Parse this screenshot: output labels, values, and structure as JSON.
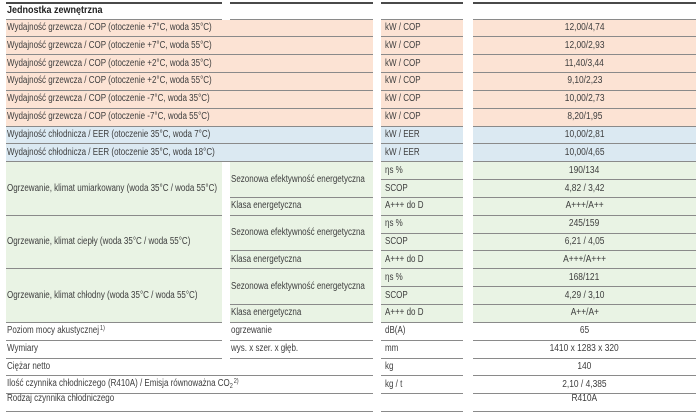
{
  "table": {
    "section_header": "Jednostka zewnętrzna",
    "colors": {
      "heating_row_bg": "#fce3d4",
      "cooling_row_bg": "#dbe9f2",
      "seasonal_row_bg": "#e9f3e4",
      "grid_line": "#8a8a8a",
      "top_line": "#4a4a4a",
      "text": "#3e3e3e"
    },
    "capacity_rows": [
      {
        "label": "Wydajność grzewcza / COP (otoczenie +7°C, woda 35°C)",
        "unit": "kW / COP",
        "value": "12,00/4,74",
        "type": "heating"
      },
      {
        "label": "Wydajność grzewcza / COP (otoczenie +7°C, woda 55°C)",
        "unit": "kW / COP",
        "value": "12,00/2,93",
        "type": "heating"
      },
      {
        "label": "Wydajność grzewcza / COP (otoczenie +2°C, woda 35°C)",
        "unit": "kW / COP",
        "value": "11,40/3,44",
        "type": "heating"
      },
      {
        "label": "Wydajność grzewcza / COP (otoczenie +2°C, woda 55°C)",
        "unit": "kW / COP",
        "value": "9,10/2,23",
        "type": "heating"
      },
      {
        "label": "Wydajność grzewcza / COP (otoczenie -7°C, woda 35°C)",
        "unit": "kW / COP",
        "value": "10,00/2,73",
        "type": "heating"
      },
      {
        "label": "Wydajność grzewcza / COP (otoczenie -7°C, woda 55°C)",
        "unit": "kW / COP",
        "value": "8,20/1,95",
        "type": "heating"
      },
      {
        "label": "Wydajność chłodnicza / EER (otoczenie 35°C, woda 7°C)",
        "unit": "kW / EER",
        "value": "10,00/2,81",
        "type": "cooling"
      },
      {
        "label": "Wydajność chłodnicza / EER (otoczenie 35°C, woda 18°C)",
        "unit": "kW / EER",
        "value": "10,00/4,65",
        "type": "cooling"
      }
    ],
    "seasonal_groups": [
      {
        "label": "Ogrzewanie, klimat umiarkowany (woda 35°C / woda 55°C)",
        "efficiency_label": "Sezonowa efektywność energetyczna",
        "class_label": "Klasa energetyczna",
        "eta_unit": "ηs %",
        "eta_value": "190/134",
        "scop_unit": "SCOP",
        "scop_value": "4,82 / 3,42",
        "class_unit": "A+++ do D",
        "class_value": "A+++/A++"
      },
      {
        "label": "Ogrzewanie, klimat ciepły (woda 35°C / woda 55°C)",
        "efficiency_label": "Sezonowa efektywność energetyczna",
        "class_label": "Klasa energetyczna",
        "eta_unit": "ηs %",
        "eta_value": "245/159",
        "scop_unit": "SCOP",
        "scop_value": "6,21 / 4,05",
        "class_unit": "A+++ do D",
        "class_value": "A+++/A+++"
      },
      {
        "label": "Ogrzewanie, klimat chłodny (woda 35°C / woda 55°C)",
        "efficiency_label": "Sezonowa efektywność energetyczna",
        "class_label": "Klasa energetyczna",
        "eta_unit": "ηs %",
        "eta_value": "168/121",
        "scop_unit": "SCOP",
        "scop_value": "4,29 / 3,10",
        "class_unit": "A+++ do D",
        "class_value": "A++/A+"
      }
    ],
    "sound_row": {
      "label": "Poziom mocy akustycznej",
      "label_sup": "1)",
      "sub_label": "ogrzewanie",
      "unit": "dB(A)",
      "value": "65"
    },
    "dimensions_row": {
      "label": "Wymiary",
      "sub_label": "wys. x szer. x głęb.",
      "unit": "mm",
      "value": "1410 x 1283 x 320"
    },
    "weight_row": {
      "label": "Ciężar netto",
      "unit": "kg",
      "value": "140"
    },
    "refrigerant_row": {
      "label": "Ilość czynnika chłodniczego (R410A) / Emisja równoważna CO",
      "label_sub": "2",
      "label_sup": "2)",
      "unit": "kg / t",
      "value": "2,10 / 4,385"
    },
    "refrigerant_type_row": {
      "label": "Rodzaj czynnika chłodniczego",
      "unit": "",
      "value": "R410A"
    }
  }
}
